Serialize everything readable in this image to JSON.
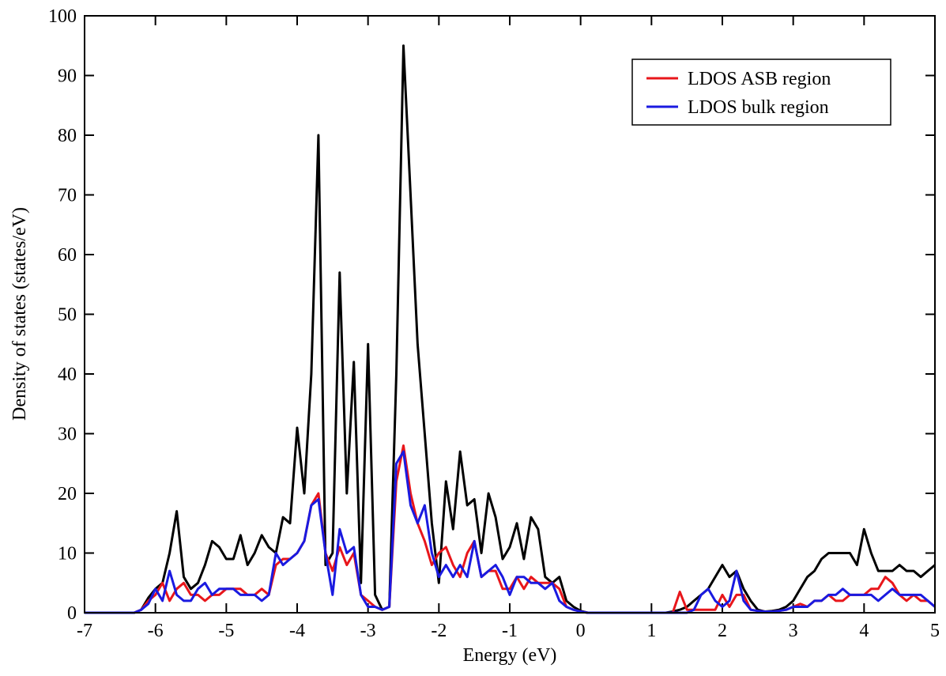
{
  "chart_data": {
    "type": "line",
    "xlabel": "Energy (eV)",
    "ylabel": "Density of states (states/eV)",
    "x": [
      -7,
      -6.9,
      -6.8,
      -6.7,
      -6.6,
      -6.5,
      -6.4,
      -6.3,
      -6.2,
      -6.1,
      -6,
      -5.9,
      -5.8,
      -5.7,
      -5.6,
      -5.5,
      -5.4,
      -5.3,
      -5.2,
      -5.1,
      -5,
      -4.9,
      -4.8,
      -4.7,
      -4.6,
      -4.5,
      -4.4,
      -4.3,
      -4.2,
      -4.1,
      -4,
      -3.9,
      -3.8,
      -3.7,
      -3.6,
      -3.5,
      -3.4,
      -3.3,
      -3.2,
      -3.1,
      -3,
      -2.9,
      -2.8,
      -2.7,
      -2.6,
      -2.5,
      -2.4,
      -2.3,
      -2.2,
      -2.1,
      -2,
      -1.9,
      -1.8,
      -1.7,
      -1.6,
      -1.5,
      -1.4,
      -1.3,
      -1.2,
      -1.1,
      -1,
      -0.9,
      -0.8,
      -0.7,
      -0.6,
      -0.5,
      -0.4,
      -0.3,
      -0.2,
      -0.1,
      0,
      0.1,
      0.2,
      0.3,
      0.4,
      0.5,
      0.6,
      0.7,
      0.8,
      0.9,
      1,
      1.1,
      1.2,
      1.3,
      1.4,
      1.5,
      1.6,
      1.7,
      1.8,
      1.9,
      2,
      2.1,
      2.2,
      2.3,
      2.4,
      2.5,
      2.6,
      2.7,
      2.8,
      2.9,
      3,
      3.1,
      3.2,
      3.3,
      3.4,
      3.5,
      3.6,
      3.7,
      3.8,
      3.9,
      4,
      4.1,
      4.2,
      4.3,
      4.4,
      4.5,
      4.6,
      4.7,
      4.8,
      4.9,
      5
    ],
    "series": [
      {
        "color": "#000000",
        "values": [
          0,
          0,
          0,
          0,
          0,
          0,
          0,
          0,
          0.5,
          2.5,
          4,
          5,
          10,
          17,
          6,
          4,
          5,
          8,
          12,
          11,
          9,
          9,
          13,
          8,
          10,
          13,
          11,
          10,
          16,
          15,
          31,
          20,
          40,
          80,
          8,
          10,
          57,
          20,
          42,
          5,
          45,
          3,
          0.5,
          1,
          40,
          95,
          70,
          45,
          30,
          15,
          5,
          22,
          14,
          27,
          18,
          19,
          10,
          20,
          16,
          9,
          11,
          15,
          9,
          16,
          14,
          6,
          5,
          6,
          2,
          1,
          0.3,
          0,
          0,
          0,
          0,
          0,
          0,
          0,
          0,
          0,
          0,
          0,
          0,
          0.2,
          0.5,
          1,
          2,
          3,
          4,
          6,
          8,
          6,
          7,
          4,
          2,
          0.5,
          0.2,
          0.3,
          0.5,
          1,
          2,
          4,
          6,
          7,
          9,
          10,
          10,
          10,
          10,
          8,
          14,
          10,
          7,
          7,
          7,
          8,
          7,
          7,
          6,
          7,
          8
        ]
      },
      {
        "name": "LDOS ASB region",
        "color": "#e8161b",
        "values": [
          0,
          0,
          0,
          0,
          0,
          0,
          0,
          0,
          0.5,
          2,
          3,
          5,
          2,
          4,
          5,
          3,
          3,
          2,
          3,
          3,
          4,
          4,
          4,
          3,
          3,
          4,
          3,
          8,
          9,
          9,
          10,
          12,
          18,
          20,
          10,
          7,
          11,
          8,
          10,
          3,
          2,
          1,
          0.5,
          1,
          22,
          28,
          20,
          15,
          12,
          8,
          10,
          11,
          8,
          6,
          10,
          12,
          6,
          7,
          7,
          4,
          4,
          6,
          4,
          6,
          5,
          5,
          5,
          4,
          1,
          0.5,
          0.2,
          0,
          0,
          0,
          0,
          0,
          0,
          0,
          0,
          0,
          0,
          0,
          0,
          0,
          3.5,
          0.5,
          0.5,
          0.5,
          0.5,
          0.5,
          3,
          1,
          3,
          3,
          0.5,
          0.3,
          0.2,
          0.2,
          0.3,
          0.5,
          1,
          1.5,
          1,
          2,
          2,
          3,
          2,
          2,
          3,
          3,
          3,
          4,
          4,
          6,
          5,
          3,
          2,
          3,
          2,
          2,
          1
        ]
      },
      {
        "name": "LDOS bulk region",
        "color": "#1a1ae0",
        "values": [
          0,
          0,
          0,
          0,
          0,
          0,
          0,
          0,
          0.5,
          1.5,
          4,
          2,
          7,
          3,
          2,
          2,
          4,
          5,
          3,
          4,
          4,
          4,
          3,
          3,
          3,
          2,
          3,
          10,
          8,
          9,
          10,
          12,
          18,
          19,
          10,
          3,
          14,
          10,
          11,
          3,
          1,
          1,
          0.5,
          1,
          25,
          27,
          18,
          15,
          18,
          10,
          6,
          8,
          6,
          8,
          6,
          12,
          6,
          7,
          8,
          6,
          3,
          6,
          6,
          5,
          5,
          4,
          5,
          2,
          1,
          0.5,
          0.2,
          0,
          0,
          0,
          0,
          0,
          0,
          0,
          0,
          0,
          0,
          0,
          0,
          0,
          0,
          0,
          0.5,
          3,
          4,
          2,
          1,
          2,
          7,
          2,
          0.5,
          0.3,
          0.2,
          0.2,
          0.3,
          0.5,
          1,
          1,
          1,
          2,
          2,
          3,
          3,
          4,
          3,
          3,
          3,
          3,
          2,
          3,
          4,
          3,
          3,
          3,
          3,
          2,
          1
        ]
      }
    ],
    "xlim": [
      -7,
      5
    ],
    "xticks": [
      -7,
      -6,
      -5,
      -4,
      -3,
      -2,
      -1,
      0,
      1,
      2,
      3,
      4,
      5
    ],
    "ylim": [
      0,
      100
    ],
    "yticks": [
      0,
      10,
      20,
      30,
      40,
      50,
      60,
      70,
      80,
      90,
      100
    ],
    "legend": "top-right"
  }
}
